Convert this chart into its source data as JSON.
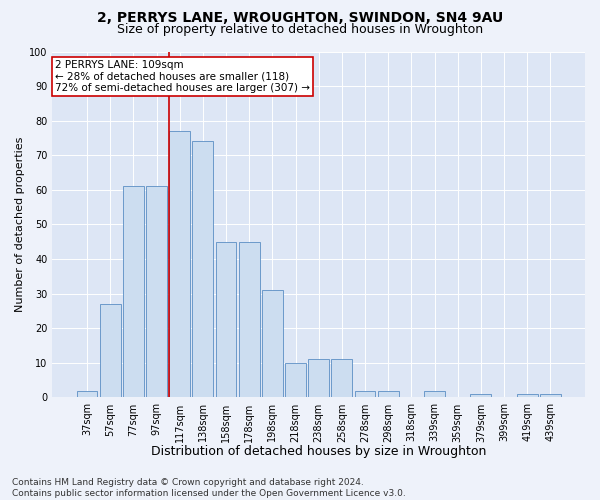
{
  "title": "2, PERRYS LANE, WROUGHTON, SWINDON, SN4 9AU",
  "subtitle": "Size of property relative to detached houses in Wroughton",
  "xlabel": "Distribution of detached houses by size in Wroughton",
  "ylabel": "Number of detached properties",
  "categories": [
    "37sqm",
    "57sqm",
    "77sqm",
    "97sqm",
    "117sqm",
    "138sqm",
    "158sqm",
    "178sqm",
    "198sqm",
    "218sqm",
    "238sqm",
    "258sqm",
    "278sqm",
    "298sqm",
    "318sqm",
    "339sqm",
    "359sqm",
    "379sqm",
    "399sqm",
    "419sqm",
    "439sqm"
  ],
  "values": [
    2,
    27,
    61,
    61,
    77,
    74,
    45,
    45,
    31,
    10,
    11,
    11,
    2,
    2,
    0,
    2,
    0,
    1,
    0,
    1,
    1
  ],
  "bar_color": "#ccddf0",
  "bar_edge_color": "#5b8ec4",
  "vline_x_data": 3.55,
  "vline_color": "#cc0000",
  "annotation_line1": "2 PERRYS LANE: 109sqm",
  "annotation_line2": "← 28% of detached houses are smaller (118)",
  "annotation_line3": "72% of semi-detached houses are larger (307) →",
  "annotation_box_color": "#ffffff",
  "annotation_box_edge": "#cc0000",
  "ylim": [
    0,
    100
  ],
  "yticks": [
    0,
    10,
    20,
    30,
    40,
    50,
    60,
    70,
    80,
    90,
    100
  ],
  "footer_line1": "Contains HM Land Registry data © Crown copyright and database right 2024.",
  "footer_line2": "Contains public sector information licensed under the Open Government Licence v3.0.",
  "title_fontsize": 10,
  "subtitle_fontsize": 9,
  "xlabel_fontsize": 9,
  "ylabel_fontsize": 8,
  "tick_fontsize": 7,
  "annot_fontsize": 7.5,
  "footer_fontsize": 6.5,
  "bg_color": "#eef2fa",
  "plot_bg_color": "#dde6f5"
}
